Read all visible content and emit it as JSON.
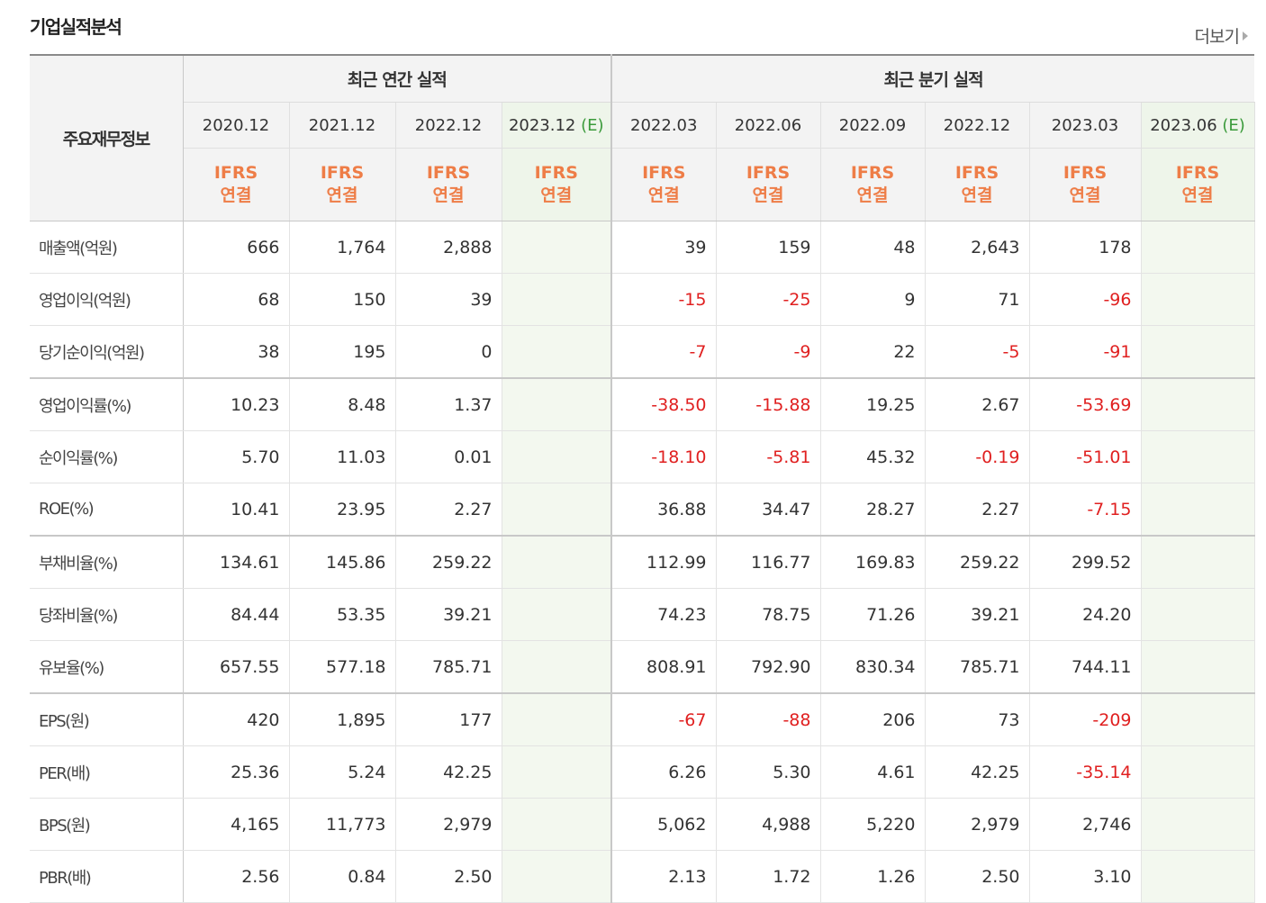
{
  "header": {
    "title": "기업실적분석",
    "more_label": "더보기"
  },
  "table": {
    "corner_label": "주요재무정보",
    "annual_title": "최근 연간 실적",
    "quarterly_title": "최근 분기 실적",
    "ifrs_line1": "IFRS",
    "ifrs_line2": "연결",
    "annual_periods": [
      {
        "period": "2020.12",
        "est": ""
      },
      {
        "period": "2021.12",
        "est": ""
      },
      {
        "period": "2022.12",
        "est": ""
      },
      {
        "period": "2023.12",
        "est": "(E)"
      }
    ],
    "quarterly_periods": [
      {
        "period": "2022.03",
        "est": ""
      },
      {
        "period": "2022.06",
        "est": ""
      },
      {
        "period": "2022.09",
        "est": ""
      },
      {
        "period": "2022.12",
        "est": ""
      },
      {
        "period": "2023.03",
        "est": ""
      },
      {
        "period": "2023.06",
        "est": "(E)"
      }
    ],
    "rows": [
      {
        "label": "매출액(억원)",
        "annual": [
          "666",
          "1,764",
          "2,888",
          ""
        ],
        "quarterly": [
          "39",
          "159",
          "48",
          "2,643",
          "178",
          ""
        ]
      },
      {
        "label": "영업이익(억원)",
        "annual": [
          "68",
          "150",
          "39",
          ""
        ],
        "quarterly": [
          "-15",
          "-25",
          "9",
          "71",
          "-96",
          ""
        ]
      },
      {
        "label": "당기순이익(억원)",
        "annual": [
          "38",
          "195",
          "0",
          ""
        ],
        "quarterly": [
          "-7",
          "-9",
          "22",
          "-5",
          "-91",
          ""
        ]
      },
      {
        "label": "영업이익률(%)",
        "annual": [
          "10.23",
          "8.48",
          "1.37",
          ""
        ],
        "quarterly": [
          "-38.50",
          "-15.88",
          "19.25",
          "2.67",
          "-53.69",
          ""
        ]
      },
      {
        "label": "순이익률(%)",
        "annual": [
          "5.70",
          "11.03",
          "0.01",
          ""
        ],
        "quarterly": [
          "-18.10",
          "-5.81",
          "45.32",
          "-0.19",
          "-51.01",
          ""
        ]
      },
      {
        "label": "ROE(%)",
        "annual": [
          "10.41",
          "23.95",
          "2.27",
          ""
        ],
        "quarterly": [
          "36.88",
          "34.47",
          "28.27",
          "2.27",
          "-7.15",
          ""
        ]
      },
      {
        "label": "부채비율(%)",
        "annual": [
          "134.61",
          "145.86",
          "259.22",
          ""
        ],
        "quarterly": [
          "112.99",
          "116.77",
          "169.83",
          "259.22",
          "299.52",
          ""
        ]
      },
      {
        "label": "당좌비율(%)",
        "annual": [
          "84.44",
          "53.35",
          "39.21",
          ""
        ],
        "quarterly": [
          "74.23",
          "78.75",
          "71.26",
          "39.21",
          "24.20",
          ""
        ]
      },
      {
        "label": "유보율(%)",
        "annual": [
          "657.55",
          "577.18",
          "785.71",
          ""
        ],
        "quarterly": [
          "808.91",
          "792.90",
          "830.34",
          "785.71",
          "744.11",
          ""
        ]
      },
      {
        "label": "EPS(원)",
        "annual": [
          "420",
          "1,895",
          "177",
          ""
        ],
        "quarterly": [
          "-67",
          "-88",
          "206",
          "73",
          "-209",
          ""
        ]
      },
      {
        "label": "PER(배)",
        "annual": [
          "25.36",
          "5.24",
          "42.25",
          ""
        ],
        "quarterly": [
          "6.26",
          "5.30",
          "4.61",
          "42.25",
          "-35.14",
          ""
        ]
      },
      {
        "label": "BPS(원)",
        "annual": [
          "4,165",
          "11,773",
          "2,979",
          ""
        ],
        "quarterly": [
          "5,062",
          "4,988",
          "5,220",
          "2,979",
          "2,746",
          ""
        ]
      },
      {
        "label": "PBR(배)",
        "annual": [
          "2.56",
          "0.84",
          "2.50",
          ""
        ],
        "quarterly": [
          "2.13",
          "1.72",
          "1.26",
          "2.50",
          "3.10",
          ""
        ]
      }
    ]
  },
  "colors": {
    "negative": "#e02020",
    "ifrs": "#ee7d47",
    "estimate": "#3a9a3a",
    "estimate_bg": "#f3f8ef"
  }
}
